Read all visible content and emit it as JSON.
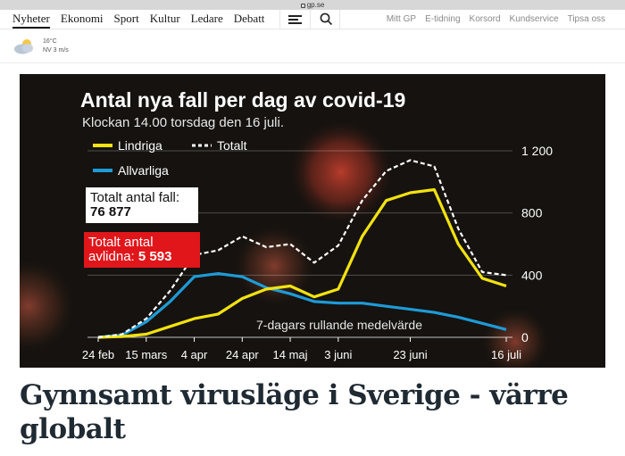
{
  "browser": {
    "url": "gp.se"
  },
  "nav": {
    "sections": [
      "Nyheter",
      "Ekonomi",
      "Sport",
      "Kultur",
      "Ledare",
      "Debatt"
    ],
    "links": [
      "Mitt GP",
      "E-tidning",
      "Korsord",
      "Kundservice",
      "Tipsa oss"
    ],
    "menu_icon": "hamburger-menu-icon",
    "search_icon": "search-icon"
  },
  "weather": {
    "icon": "partly-cloudy-icon",
    "temperature": "16°C",
    "wind": "NV 3 m/s"
  },
  "chart_data": {
    "type": "line",
    "title": "Antal nya fall per dag av covid-19",
    "subtitle": "Klockan 14.00 torsdag den 16 juli.",
    "legend": [
      {
        "name": "Lindriga",
        "color": "#f2e20f",
        "style": "solid"
      },
      {
        "name": "Totalt",
        "color": "#ffffff",
        "style": "dashed"
      },
      {
        "name": "Allvarliga",
        "color": "#1e9bd7",
        "style": "solid"
      }
    ],
    "legend_placement": "top-left",
    "x_ticks": [
      "24 feb",
      "15 mars",
      "4 apr",
      "24 apr",
      "14 maj",
      "3 juni",
      "23 juni",
      "16 juli"
    ],
    "x": [
      "24 feb",
      "5 mars",
      "15 mars",
      "25 mars",
      "4 apr",
      "14 apr",
      "24 apr",
      "4 maj",
      "14 maj",
      "24 maj",
      "3 juni",
      "13 juni",
      "18 juni",
      "23 juni",
      "28 juni",
      "3 juli",
      "8 juli",
      "16 juli"
    ],
    "y_ticks": [
      "0",
      "400",
      "800",
      "1 200"
    ],
    "ylim": [
      0,
      1200
    ],
    "y_axis_side": "right",
    "grid": "horizontal",
    "series": [
      {
        "name": "Totalt",
        "values": [
          0,
          20,
          120,
          300,
          530,
          560,
          650,
          580,
          600,
          480,
          590,
          880,
          1070,
          1140,
          1100,
          700,
          420,
          400
        ]
      },
      {
        "name": "Lindriga",
        "values": [
          0,
          5,
          20,
          70,
          120,
          150,
          250,
          310,
          330,
          260,
          310,
          650,
          880,
          930,
          950,
          600,
          380,
          330
        ]
      },
      {
        "name": "Allvarliga",
        "values": [
          0,
          15,
          100,
          230,
          390,
          410,
          390,
          320,
          280,
          230,
          220,
          220,
          200,
          180,
          160,
          130,
          90,
          50
        ]
      }
    ],
    "annotation": "7-dagars rullande medelvärde",
    "boxes": [
      {
        "label": "Totalt antal fall:",
        "value": "76 877"
      },
      {
        "label": "Totalt antal avlidna:",
        "value": "5 593"
      }
    ]
  },
  "article": {
    "headline": "Gynnsamt virusläge i Sverige - värre globalt"
  }
}
